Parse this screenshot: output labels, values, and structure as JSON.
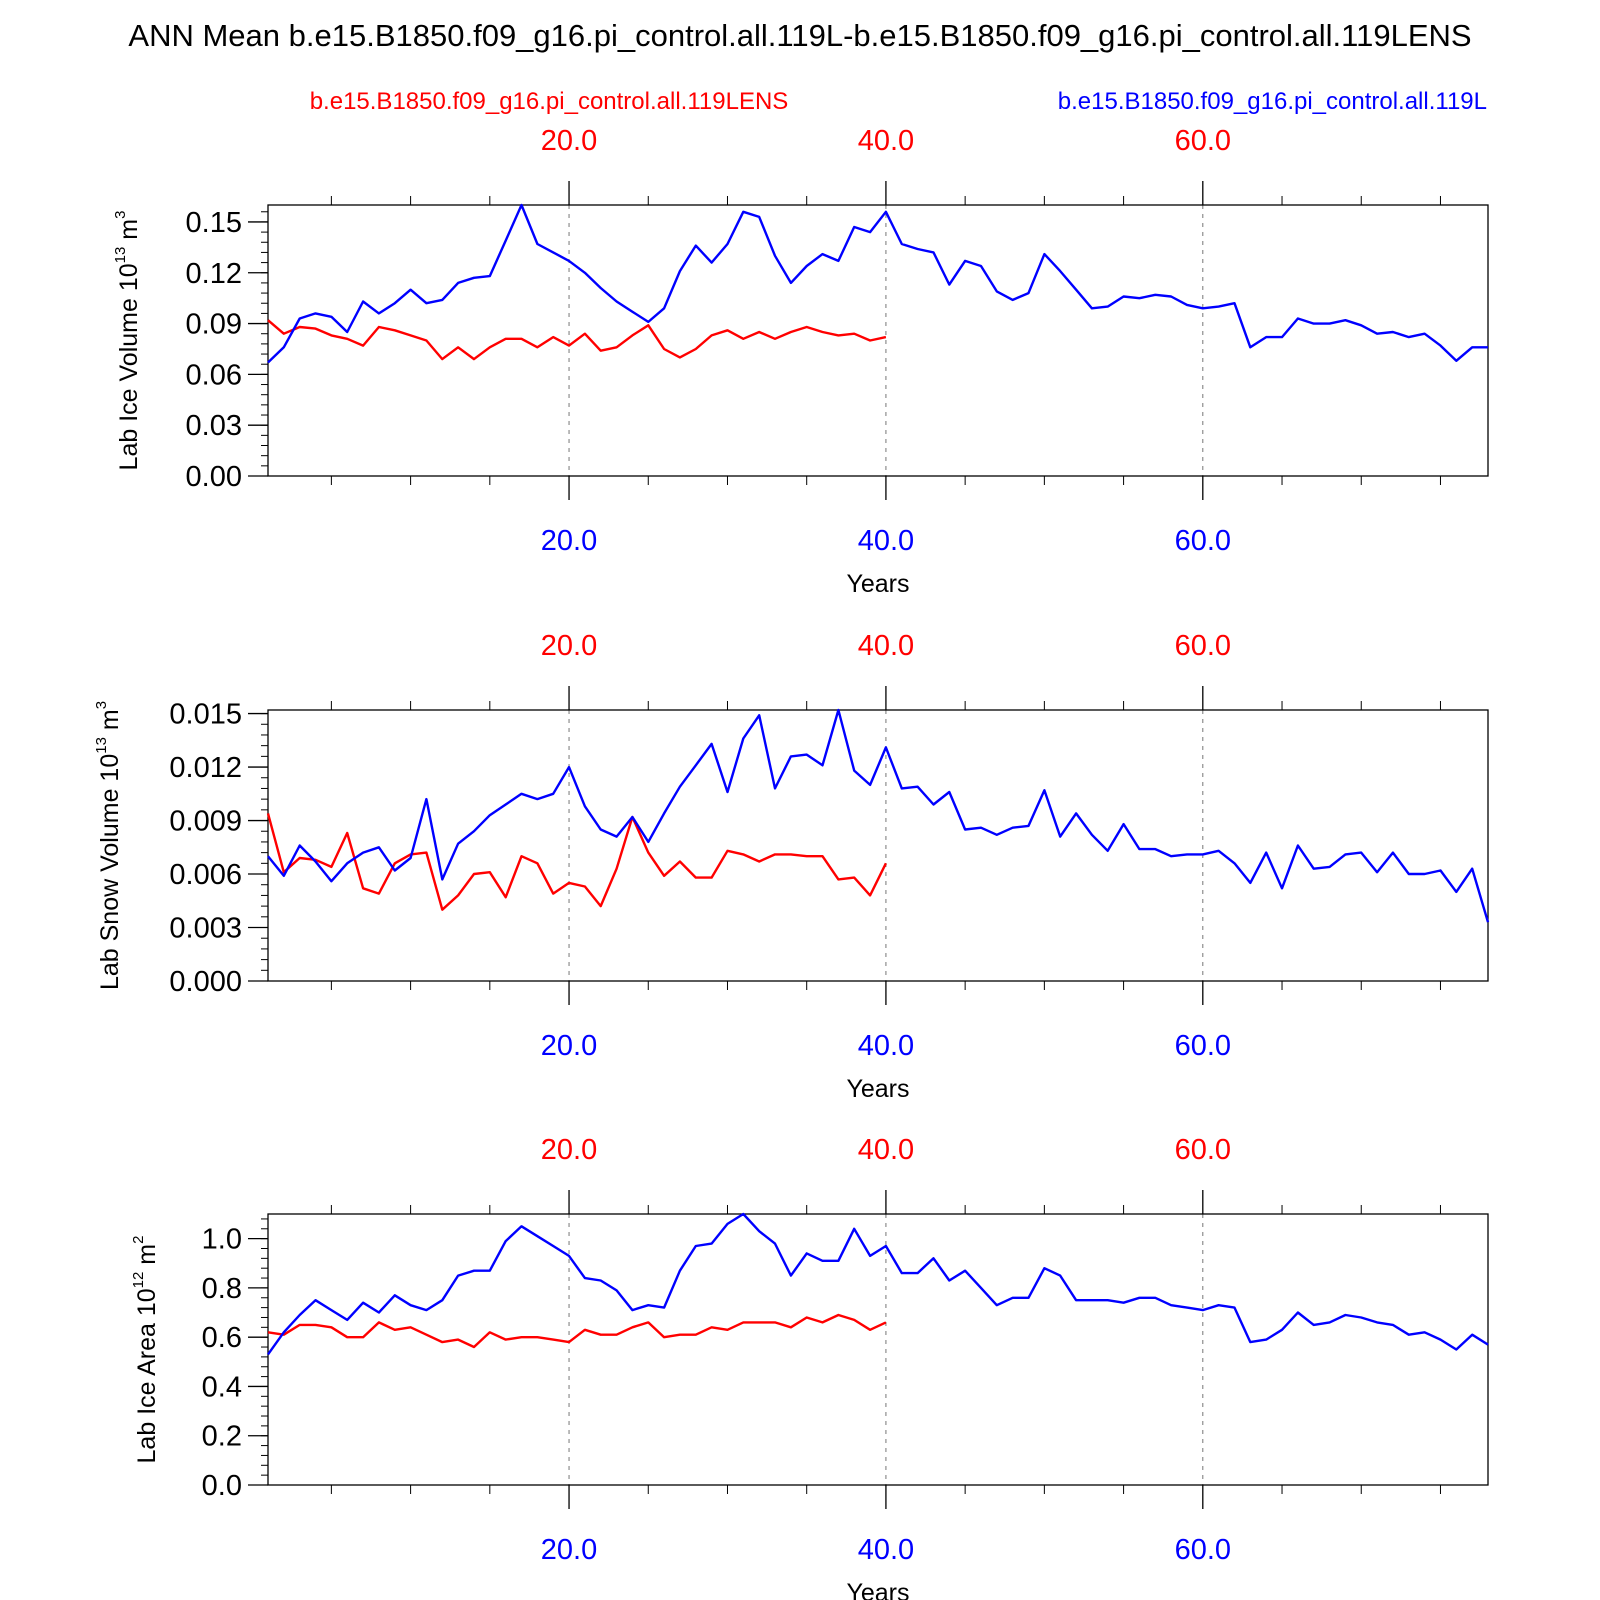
{
  "title": "ANN Mean b.e15.B1850.f09_g16.pi_control.all.119L-b.e15.B1850.f09_g16.pi_control.all.119LENS",
  "legend": {
    "red_label": "b.e15.B1850.f09_g16.pi_control.all.119LENS",
    "blue_label": "b.e15.B1850.f09_g16.pi_control.all.119L"
  },
  "colors": {
    "red": "#ff0000",
    "blue": "#0000ff",
    "axis": "#000000",
    "grid": "#777777"
  },
  "chart_data": [
    {
      "type": "line",
      "ylabel": "Lab Ice Volume 10",
      "ylabel_exp": "13",
      "ylabel_unit": " m",
      "ylabel_unit_exp": "3",
      "xlabel": "Years",
      "xlim": [
        1,
        78
      ],
      "ylim": [
        0,
        0.16
      ],
      "yticks": [
        0,
        0.03,
        0.06,
        0.09,
        0.12,
        0.15
      ],
      "ytick_labels": [
        "0.00",
        "0.03",
        "0.06",
        "0.09",
        "0.12",
        "0.15"
      ],
      "yminor_step": 0.006,
      "xticks": [
        20,
        40,
        60
      ],
      "xtick_labels": [
        "20.0",
        "40.0",
        "60.0"
      ],
      "xminor_step": 5,
      "grid": "vertical-dashed",
      "series": [
        {
          "name": "b.e15.B1850.f09_g16.pi_control.all.119LENS",
          "color": "red",
          "x": [
            1,
            2,
            3,
            4,
            5,
            6,
            7,
            8,
            9,
            10,
            11,
            12,
            13,
            14,
            15,
            16,
            17,
            18,
            19,
            20,
            21,
            22,
            23,
            24,
            25,
            26,
            27,
            28,
            29,
            30,
            31,
            32,
            33,
            34,
            35,
            36,
            37,
            38,
            39,
            40
          ],
          "y": [
            0.092,
            0.084,
            0.088,
            0.087,
            0.083,
            0.081,
            0.077,
            0.088,
            0.086,
            0.083,
            0.08,
            0.069,
            0.076,
            0.069,
            0.076,
            0.081,
            0.081,
            0.076,
            0.082,
            0.077,
            0.084,
            0.074,
            0.076,
            0.083,
            0.089,
            0.075,
            0.07,
            0.075,
            0.083,
            0.086,
            0.081,
            0.085,
            0.081,
            0.085,
            0.088,
            0.085,
            0.083,
            0.084,
            0.08,
            0.082
          ]
        },
        {
          "name": "b.e15.B1850.f09_g16.pi_control.all.119L",
          "color": "blue",
          "x": [
            1,
            2,
            3,
            4,
            5,
            6,
            7,
            8,
            9,
            10,
            11,
            12,
            13,
            14,
            15,
            16,
            17,
            18,
            19,
            20,
            21,
            22,
            23,
            24,
            25,
            26,
            27,
            28,
            29,
            30,
            31,
            32,
            33,
            34,
            35,
            36,
            37,
            38,
            39,
            40,
            41,
            42,
            43,
            44,
            45,
            46,
            47,
            48,
            49,
            50,
            51,
            52,
            53,
            54,
            55,
            56,
            57,
            58,
            59,
            60,
            61,
            62,
            63,
            64,
            65,
            66,
            67,
            68,
            69,
            70,
            71,
            72,
            73,
            74,
            75,
            76,
            77,
            78
          ],
          "y": [
            0.067,
            0.076,
            0.093,
            0.096,
            0.094,
            0.085,
            0.103,
            0.096,
            0.102,
            0.11,
            0.102,
            0.104,
            0.114,
            0.117,
            0.118,
            0.139,
            0.16,
            0.137,
            0.132,
            0.127,
            0.12,
            0.111,
            0.103,
            0.097,
            0.091,
            0.099,
            0.121,
            0.136,
            0.126,
            0.137,
            0.156,
            0.153,
            0.13,
            0.114,
            0.124,
            0.131,
            0.127,
            0.147,
            0.144,
            0.156,
            0.137,
            0.134,
            0.132,
            0.113,
            0.127,
            0.124,
            0.109,
            0.104,
            0.108,
            0.131,
            0.121,
            0.11,
            0.099,
            0.1,
            0.106,
            0.105,
            0.107,
            0.106,
            0.101,
            0.099,
            0.1,
            0.102,
            0.076,
            0.082,
            0.082,
            0.093,
            0.09,
            0.09,
            0.092,
            0.089,
            0.084,
            0.085,
            0.082,
            0.084,
            0.077,
            0.068,
            0.076,
            0.076
          ]
        }
      ]
    },
    {
      "type": "line",
      "ylabel": "Lab Snow Volume 10",
      "ylabel_exp": "13",
      "ylabel_unit": " m",
      "ylabel_unit_exp": "3",
      "xlabel": "Years",
      "xlim": [
        1,
        78
      ],
      "ylim": [
        0,
        0.0152
      ],
      "yticks": [
        0,
        0.003,
        0.006,
        0.009,
        0.012,
        0.015
      ],
      "ytick_labels": [
        "0.000",
        "0.003",
        "0.006",
        "0.009",
        "0.012",
        "0.015"
      ],
      "yminor_step": 0.0006,
      "xticks": [
        20,
        40,
        60
      ],
      "xtick_labels": [
        "20.0",
        "40.0",
        "60.0"
      ],
      "xminor_step": 5,
      "grid": "vertical-dashed",
      "series": [
        {
          "name": "b.e15.B1850.f09_g16.pi_control.all.119LENS",
          "color": "red",
          "x": [
            1,
            2,
            3,
            4,
            5,
            6,
            7,
            8,
            9,
            10,
            11,
            12,
            13,
            14,
            15,
            16,
            17,
            18,
            19,
            20,
            21,
            22,
            23,
            24,
            25,
            26,
            27,
            28,
            29,
            30,
            31,
            32,
            33,
            34,
            35,
            36,
            37,
            38,
            39,
            40
          ],
          "y": [
            0.0094,
            0.0061,
            0.0069,
            0.0068,
            0.0064,
            0.0083,
            0.0052,
            0.0049,
            0.0066,
            0.0071,
            0.0072,
            0.004,
            0.0048,
            0.006,
            0.0061,
            0.0047,
            0.007,
            0.0066,
            0.0049,
            0.0055,
            0.0053,
            0.0042,
            0.0063,
            0.0092,
            0.0072,
            0.0059,
            0.0067,
            0.0058,
            0.0058,
            0.0073,
            0.0071,
            0.0067,
            0.0071,
            0.0071,
            0.007,
            0.007,
            0.0057,
            0.0058,
            0.0048,
            0.0066
          ]
        },
        {
          "name": "b.e15.B1850.f09_g16.pi_control.all.119L",
          "color": "blue",
          "x": [
            1,
            2,
            3,
            4,
            5,
            6,
            7,
            8,
            9,
            10,
            11,
            12,
            13,
            14,
            15,
            16,
            17,
            18,
            19,
            20,
            21,
            22,
            23,
            24,
            25,
            26,
            27,
            28,
            29,
            30,
            31,
            32,
            33,
            34,
            35,
            36,
            37,
            38,
            39,
            40,
            41,
            42,
            43,
            44,
            45,
            46,
            47,
            48,
            49,
            50,
            51,
            52,
            53,
            54,
            55,
            56,
            57,
            58,
            59,
            60,
            61,
            62,
            63,
            64,
            65,
            66,
            67,
            68,
            69,
            70,
            71,
            72,
            73,
            74,
            75,
            76,
            77,
            78
          ],
          "y": [
            0.007,
            0.0059,
            0.0076,
            0.0067,
            0.0056,
            0.0066,
            0.0072,
            0.0075,
            0.0062,
            0.0069,
            0.0102,
            0.0057,
            0.0077,
            0.0084,
            0.0093,
            0.0099,
            0.0105,
            0.0102,
            0.0105,
            0.012,
            0.0098,
            0.0085,
            0.0081,
            0.0092,
            0.0078,
            0.0094,
            0.0109,
            0.0121,
            0.0133,
            0.0106,
            0.0136,
            0.0149,
            0.0108,
            0.0126,
            0.0127,
            0.0121,
            0.0152,
            0.0118,
            0.011,
            0.0131,
            0.0108,
            0.0109,
            0.0099,
            0.0106,
            0.0085,
            0.0086,
            0.0082,
            0.0086,
            0.0087,
            0.0107,
            0.0081,
            0.0094,
            0.0082,
            0.0073,
            0.0088,
            0.0074,
            0.0074,
            0.007,
            0.0071,
            0.0071,
            0.0073,
            0.0066,
            0.0055,
            0.0072,
            0.0052,
            0.0076,
            0.0063,
            0.0064,
            0.0071,
            0.0072,
            0.0061,
            0.0072,
            0.006,
            0.006,
            0.0062,
            0.005,
            0.0063,
            0.0033
          ]
        }
      ]
    },
    {
      "type": "line",
      "ylabel": "Lab Ice Area 10",
      "ylabel_exp": "12",
      "ylabel_unit": " m",
      "ylabel_unit_exp": "2",
      "xlabel": "Years",
      "xlim": [
        1,
        78
      ],
      "ylim": [
        0,
        1.1
      ],
      "yticks": [
        0,
        0.2,
        0.4,
        0.6,
        0.8,
        1.0
      ],
      "ytick_labels": [
        "0.0",
        "0.2",
        "0.4",
        "0.6",
        "0.8",
        "1.0"
      ],
      "yminor_step": 0.04,
      "xticks": [
        20,
        40,
        60
      ],
      "xtick_labels": [
        "20.0",
        "40.0",
        "60.0"
      ],
      "xminor_step": 5,
      "grid": "vertical-dashed",
      "series": [
        {
          "name": "b.e15.B1850.f09_g16.pi_control.all.119LENS",
          "color": "red",
          "x": [
            1,
            2,
            3,
            4,
            5,
            6,
            7,
            8,
            9,
            10,
            11,
            12,
            13,
            14,
            15,
            16,
            17,
            18,
            19,
            20,
            21,
            22,
            23,
            24,
            25,
            26,
            27,
            28,
            29,
            30,
            31,
            32,
            33,
            34,
            35,
            36,
            37,
            38,
            39,
            40
          ],
          "y": [
            0.62,
            0.61,
            0.65,
            0.65,
            0.64,
            0.6,
            0.6,
            0.66,
            0.63,
            0.64,
            0.61,
            0.58,
            0.59,
            0.56,
            0.62,
            0.59,
            0.6,
            0.6,
            0.59,
            0.58,
            0.63,
            0.61,
            0.61,
            0.64,
            0.66,
            0.6,
            0.61,
            0.61,
            0.64,
            0.63,
            0.66,
            0.66,
            0.66,
            0.64,
            0.68,
            0.66,
            0.69,
            0.67,
            0.63,
            0.66
          ]
        },
        {
          "name": "b.e15.B1850.f09_g16.pi_control.all.119L",
          "color": "blue",
          "x": [
            1,
            2,
            3,
            4,
            5,
            6,
            7,
            8,
            9,
            10,
            11,
            12,
            13,
            14,
            15,
            16,
            17,
            18,
            19,
            20,
            21,
            22,
            23,
            24,
            25,
            26,
            27,
            28,
            29,
            30,
            31,
            32,
            33,
            34,
            35,
            36,
            37,
            38,
            39,
            40,
            41,
            42,
            43,
            44,
            45,
            46,
            47,
            48,
            49,
            50,
            51,
            52,
            53,
            54,
            55,
            56,
            57,
            58,
            59,
            60,
            61,
            62,
            63,
            64,
            65,
            66,
            67,
            68,
            69,
            70,
            71,
            72,
            73,
            74,
            75,
            76,
            77,
            78
          ],
          "y": [
            0.53,
            0.62,
            0.69,
            0.75,
            0.71,
            0.67,
            0.74,
            0.7,
            0.77,
            0.73,
            0.71,
            0.75,
            0.85,
            0.87,
            0.87,
            0.99,
            1.05,
            1.01,
            0.97,
            0.93,
            0.84,
            0.83,
            0.79,
            0.71,
            0.73,
            0.72,
            0.87,
            0.97,
            0.98,
            1.06,
            1.1,
            1.03,
            0.98,
            0.85,
            0.94,
            0.91,
            0.91,
            1.04,
            0.93,
            0.97,
            0.86,
            0.86,
            0.92,
            0.83,
            0.87,
            0.8,
            0.73,
            0.76,
            0.76,
            0.88,
            0.85,
            0.75,
            0.75,
            0.75,
            0.74,
            0.76,
            0.76,
            0.73,
            0.72,
            0.71,
            0.73,
            0.72,
            0.58,
            0.59,
            0.63,
            0.7,
            0.65,
            0.66,
            0.69,
            0.68,
            0.66,
            0.65,
            0.61,
            0.62,
            0.59,
            0.55,
            0.61,
            0.57
          ]
        }
      ]
    }
  ]
}
